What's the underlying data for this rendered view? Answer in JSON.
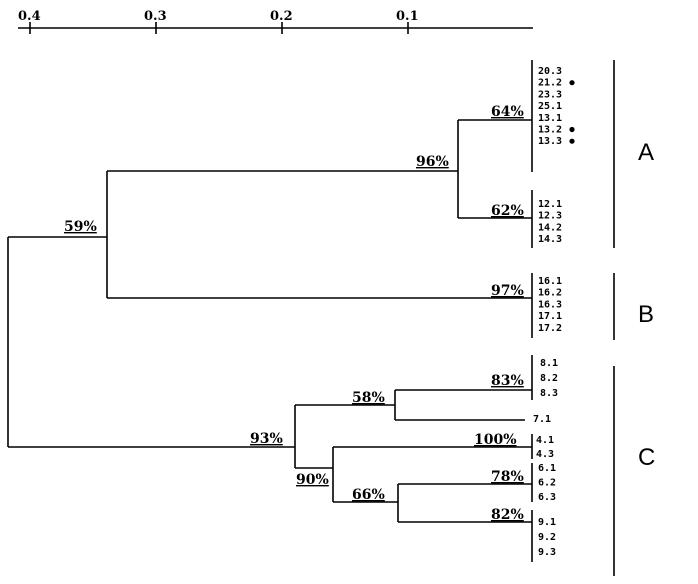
{
  "axis": {
    "ticks": [
      "0.4",
      "0.3",
      "0.2",
      "0.1"
    ]
  },
  "nodes": {
    "root": "59%",
    "a_top": "96%",
    "a1": "64%",
    "a2": "62%",
    "b": "97%",
    "c_top": "93%",
    "c_58": "58%",
    "c_83": "83%",
    "c_90": "90%",
    "c_100": "100%",
    "c_66": "66%",
    "c_78": "78%",
    "c_82": "82%"
  },
  "leaves": {
    "a1": [
      "20.3",
      "21.2",
      "23.3",
      "25.1",
      "13.1",
      "13.2",
      "13.3"
    ],
    "a2": [
      "12.1",
      "12.3",
      "14.2",
      "14.3"
    ],
    "b": [
      "16.1",
      "16.2",
      "16.3",
      "17.1",
      "17.2"
    ],
    "c83": [
      "8.1",
      "8.2",
      "8.3"
    ],
    "c71": [
      "7.1"
    ],
    "c100": [
      "4.1",
      "4.3"
    ],
    "c78": [
      "6.1",
      "6.2",
      "6.3"
    ],
    "c82": [
      "9.1",
      "9.2",
      "9.3"
    ]
  },
  "marked_leaves": [
    "21.2",
    "13.2",
    "13.3"
  ],
  "groups": [
    "A",
    "B",
    "C"
  ]
}
